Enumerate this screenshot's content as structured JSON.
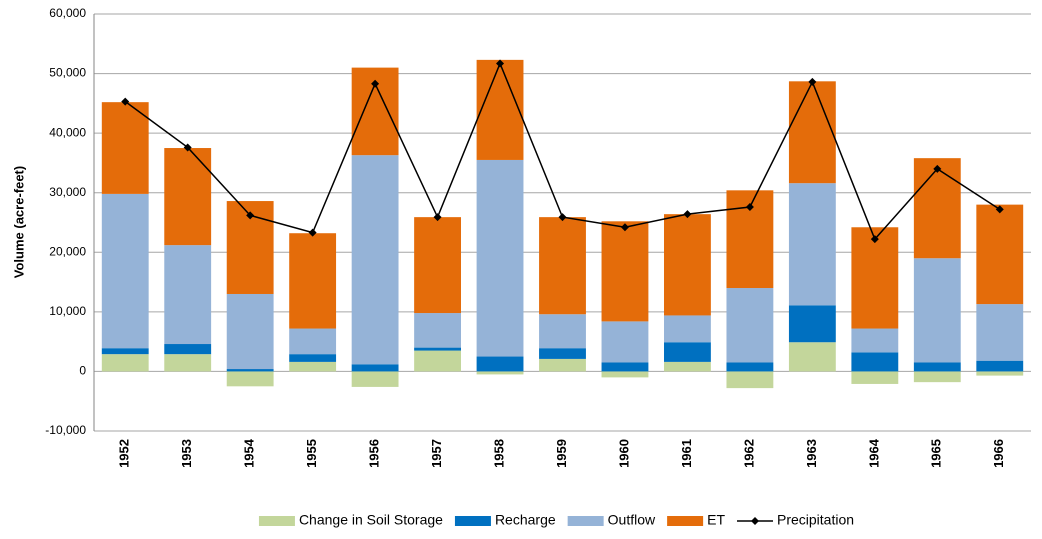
{
  "chart_data": {
    "type": "bar",
    "stacked": true,
    "y_label": "Volume (acre-feet)",
    "categories": [
      "1952",
      "1953",
      "1954",
      "1955",
      "1956",
      "1957",
      "1958",
      "1959",
      "1960",
      "1961",
      "1962",
      "1963",
      "1964",
      "1965",
      "1966"
    ],
    "series": [
      {
        "name": "Change in Soil Storage",
        "color": "#c3d69b",
        "values": [
          2900,
          2900,
          -2500,
          1600,
          -2600,
          3500,
          -500,
          2100,
          -1000,
          1600,
          -2800,
          4900,
          -2100,
          -1800,
          -700
        ]
      },
      {
        "name": "Recharge",
        "color": "#0070c0",
        "values": [
          1000,
          1700,
          400,
          1300,
          1200,
          500,
          2500,
          1800,
          1500,
          3300,
          1500,
          6200,
          3200,
          1500,
          1800
        ]
      },
      {
        "name": "Outflow",
        "color": "#95b3d7",
        "values": [
          25900,
          16600,
          12600,
          4300,
          35100,
          5800,
          33000,
          5700,
          6900,
          4500,
          12500,
          20500,
          4000,
          17500,
          9500
        ]
      },
      {
        "name": "ET",
        "color": "#e46c0a",
        "values": [
          15400,
          16300,
          15600,
          16000,
          14700,
          16100,
          16800,
          16300,
          16800,
          17000,
          16400,
          17100,
          17000,
          16800,
          16700
        ]
      },
      {
        "name": "Precipitation",
        "type": "line",
        "color": "#000000",
        "values": [
          45300,
          37600,
          26200,
          23300,
          48300,
          25900,
          51700,
          25900,
          24200,
          26400,
          27600,
          48600,
          22200,
          34000,
          27200
        ]
      }
    ],
    "ylim": [
      -10000,
      60000
    ],
    "yticks": [
      {
        "value": -10000,
        "label": "-10,000"
      },
      0,
      {
        "value": 10000,
        "label": "10,000"
      },
      {
        "value": 20000,
        "label": "20,000"
      },
      {
        "value": 30000,
        "label": "30,000"
      },
      {
        "value": 40000,
        "label": "40,000"
      },
      {
        "value": 50000,
        "label": "50,000"
      },
      {
        "value": 60000,
        "label": "60,000"
      }
    ],
    "grid": true,
    "legend": "bottom"
  }
}
